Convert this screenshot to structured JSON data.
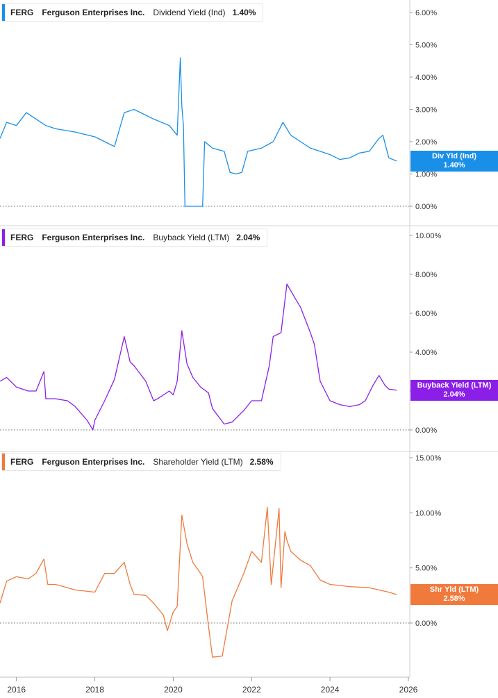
{
  "chart_data": [
    {
      "type": "line",
      "ticker": "FERG",
      "company": "Ferguson Enterprises Inc.",
      "metric": "Dividend Yield (Ind)",
      "value": "1.40%",
      "badge_label": "Div Yld (Ind)",
      "badge_value": "1.40%",
      "color": "#1a8fe8",
      "ylim": [
        0,
        6
      ],
      "yticks": [
        "0.00%",
        "1.00%",
        "2.00%",
        "3.00%",
        "4.00%",
        "5.00%",
        "6.00%"
      ],
      "ytick_values": [
        0,
        1,
        2,
        3,
        4,
        5,
        6
      ],
      "x": [
        2015.58,
        2015.75,
        2016.0,
        2016.25,
        2016.5,
        2016.75,
        2017.0,
        2017.5,
        2018.0,
        2018.25,
        2018.5,
        2018.75,
        2019.0,
        2019.5,
        2019.9,
        2020.1,
        2020.18,
        2020.22,
        2020.26,
        2020.3,
        2020.75,
        2020.8,
        2021.0,
        2021.3,
        2021.45,
        2021.6,
        2021.75,
        2021.9,
        2022.25,
        2022.55,
        2022.8,
        2023.0,
        2023.25,
        2023.5,
        2023.75,
        2024.0,
        2024.25,
        2024.5,
        2024.75,
        2025.0,
        2025.25,
        2025.35,
        2025.5,
        2025.7
      ],
      "y": [
        2.1,
        2.6,
        2.5,
        2.9,
        2.7,
        2.5,
        2.4,
        2.3,
        2.15,
        2.0,
        1.85,
        2.9,
        3.0,
        2.7,
        2.5,
        2.2,
        4.6,
        3.1,
        2.5,
        0.0,
        0.0,
        2.0,
        1.8,
        1.7,
        1.05,
        1.0,
        1.05,
        1.7,
        1.8,
        2.0,
        2.6,
        2.2,
        2.0,
        1.8,
        1.7,
        1.6,
        1.45,
        1.5,
        1.65,
        1.7,
        2.1,
        2.2,
        1.5,
        1.4
      ]
    },
    {
      "type": "line",
      "ticker": "FERG",
      "company": "Ferguson Enterprises Inc.",
      "metric": "Buyback Yield (LTM)",
      "value": "2.04%",
      "badge_label": "Buyback Yield (LTM)",
      "badge_value": "2.04%",
      "color": "#8b1fe8",
      "ylim": [
        0,
        10
      ],
      "yticks": [
        "0.00%",
        "2.00%",
        "4.00%",
        "6.00%",
        "8.00%",
        "10.00%"
      ],
      "ytick_values": [
        0,
        2,
        4,
        6,
        8,
        10
      ],
      "x": [
        2015.58,
        2015.75,
        2016.0,
        2016.3,
        2016.5,
        2016.7,
        2016.75,
        2017.0,
        2017.3,
        2017.5,
        2017.8,
        2017.95,
        2018.0,
        2018.25,
        2018.5,
        2018.75,
        2018.9,
        2019.0,
        2019.3,
        2019.5,
        2019.6,
        2019.9,
        2020.0,
        2020.1,
        2020.22,
        2020.35,
        2020.5,
        2020.7,
        2020.9,
        2021.0,
        2021.3,
        2021.5,
        2021.8,
        2022.0,
        2022.25,
        2022.45,
        2022.55,
        2022.75,
        2022.9,
        2023.1,
        2023.25,
        2023.5,
        2023.6,
        2023.75,
        2024.0,
        2024.25,
        2024.5,
        2024.75,
        2024.9,
        2025.1,
        2025.25,
        2025.4,
        2025.5,
        2025.7
      ],
      "y": [
        2.5,
        2.7,
        2.2,
        2.0,
        2.0,
        3.0,
        1.6,
        1.6,
        1.5,
        1.2,
        0.5,
        0.0,
        0.5,
        1.5,
        2.6,
        4.8,
        3.5,
        3.3,
        2.5,
        1.5,
        1.6,
        2.0,
        1.8,
        2.5,
        5.1,
        3.4,
        2.7,
        2.2,
        1.9,
        1.1,
        0.3,
        0.4,
        1.0,
        1.5,
        1.5,
        3.3,
        4.8,
        5.0,
        7.5,
        6.8,
        6.3,
        5.0,
        4.4,
        2.5,
        1.5,
        1.3,
        1.2,
        1.3,
        1.5,
        2.3,
        2.8,
        2.3,
        2.1,
        2.04
      ]
    },
    {
      "type": "line",
      "ticker": "FERG",
      "company": "Ferguson Enterprises Inc.",
      "metric": "Shareholder Yield (LTM)",
      "value": "2.58%",
      "badge_label": "Shr Yld (LTM)",
      "badge_value": "2.58%",
      "color": "#f07a3c",
      "ylim": [
        -3.3,
        15
      ],
      "yticks": [
        "0.00%",
        "5.00%",
        "10.00%",
        "15.00%"
      ],
      "ytick_values": [
        0,
        5,
        10,
        15
      ],
      "x": [
        2015.58,
        2015.75,
        2016.0,
        2016.3,
        2016.5,
        2016.7,
        2016.8,
        2017.0,
        2017.5,
        2018.0,
        2018.25,
        2018.5,
        2018.75,
        2018.9,
        2019.0,
        2019.3,
        2019.5,
        2019.75,
        2019.85,
        2020.0,
        2020.1,
        2020.22,
        2020.35,
        2020.5,
        2020.7,
        2020.75,
        2020.9,
        2021.0,
        2021.25,
        2021.5,
        2021.8,
        2022.0,
        2022.25,
        2022.4,
        2022.5,
        2022.7,
        2022.75,
        2022.85,
        2022.9,
        2023.0,
        2023.25,
        2023.5,
        2023.75,
        2024.0,
        2024.5,
        2025.0,
        2025.25,
        2025.5,
        2025.7
      ],
      "y": [
        1.8,
        3.8,
        4.2,
        4.0,
        4.5,
        5.8,
        3.5,
        3.5,
        3.0,
        2.8,
        4.5,
        4.5,
        5.5,
        3.5,
        2.6,
        2.5,
        1.8,
        0.7,
        -0.7,
        1.0,
        1.5,
        9.8,
        7.2,
        5.5,
        4.5,
        4.2,
        -0.3,
        -3.1,
        -3.0,
        2.0,
        4.5,
        6.5,
        5.5,
        10.5,
        3.5,
        10.4,
        3.2,
        8.3,
        7.5,
        6.5,
        5.7,
        5.2,
        3.9,
        3.5,
        3.3,
        3.2,
        3.0,
        2.8,
        2.58
      ]
    }
  ],
  "x_axis": {
    "ticks": [
      "2016",
      "2018",
      "2020",
      "2022",
      "2024",
      "2026"
    ],
    "tick_values": [
      2016,
      2018,
      2020,
      2022,
      2024,
      2026
    ]
  }
}
